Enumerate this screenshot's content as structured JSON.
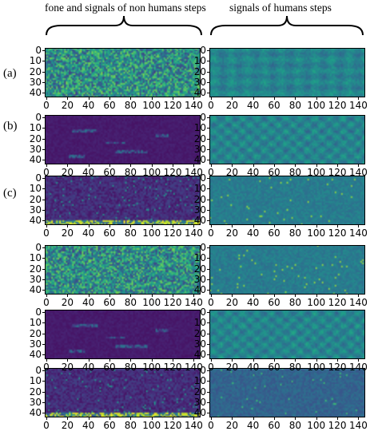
{
  "headers": {
    "left": "fone and signals of non humans steps",
    "right": "signals of humans steps"
  },
  "row_labels": [
    "(a)",
    "(b)",
    "(c)"
  ],
  "colors": {
    "viridis_low": "#440154",
    "viridis_mid": "#21918c",
    "viridis_high": "#fde725"
  },
  "chart_data": [
    {
      "type": "heatmap",
      "panel": "row1-left",
      "style": "noise",
      "mean": 0.5,
      "spread": 0.3,
      "xlim": [
        0,
        145
      ],
      "ylim": [
        42,
        0
      ],
      "xticks": [
        0,
        20,
        40,
        60,
        80,
        100,
        120,
        140
      ],
      "yticks": [
        0,
        10,
        20,
        30,
        40
      ]
    },
    {
      "type": "heatmap",
      "panel": "row1-right",
      "style": "smooth",
      "mean": 0.45,
      "spread": 0.12,
      "xlim": [
        0,
        145
      ],
      "ylim": [
        42,
        0
      ],
      "xticks": [
        0,
        20,
        40,
        60,
        80,
        100,
        120,
        140
      ],
      "yticks": [
        0,
        10,
        20,
        30,
        40
      ]
    },
    {
      "type": "heatmap",
      "panel": "row2-left",
      "style": "dark-streaks",
      "mean": 0.05,
      "spread": 0.05,
      "xlim": [
        0,
        145
      ],
      "ylim": [
        42,
        0
      ],
      "xticks": [
        0,
        20,
        40,
        60,
        80,
        100,
        120,
        140
      ],
      "yticks": [
        0,
        10,
        20,
        30,
        40
      ]
    },
    {
      "type": "heatmap",
      "panel": "row2-right",
      "style": "blobs",
      "mean": 0.45,
      "spread": 0.12,
      "xlim": [
        0,
        145
      ],
      "ylim": [
        42,
        0
      ],
      "xticks": [
        0,
        20,
        40,
        60,
        80,
        100,
        120,
        140
      ],
      "yticks": [
        0,
        10,
        20,
        30,
        40
      ]
    },
    {
      "type": "heatmap",
      "panel": "row3-left",
      "style": "dark-noise-bottom-band",
      "mean": 0.1,
      "spread": 0.08,
      "xlim": [
        0,
        145
      ],
      "ylim": [
        42,
        0
      ],
      "xticks": [
        0,
        20,
        40,
        60,
        80,
        100,
        120,
        140
      ],
      "yticks": [
        0,
        10,
        20,
        30,
        40
      ]
    },
    {
      "type": "heatmap",
      "panel": "row3-right",
      "style": "fine",
      "mean": 0.42,
      "spread": 0.08,
      "xlim": [
        0,
        145
      ],
      "ylim": [
        42,
        0
      ],
      "xticks": [
        0,
        20,
        40,
        60,
        80,
        100,
        120,
        140
      ],
      "yticks": [
        0,
        10,
        20,
        30,
        40
      ]
    },
    {
      "type": "heatmap",
      "panel": "row4-left",
      "style": "noise",
      "mean": 0.5,
      "spread": 0.3,
      "xlim": [
        0,
        145
      ],
      "ylim": [
        42,
        0
      ],
      "xticks": [
        0,
        20,
        40,
        60,
        80,
        100,
        120,
        140
      ],
      "yticks": [
        0,
        10,
        20,
        30,
        40
      ]
    },
    {
      "type": "heatmap",
      "panel": "row4-right",
      "style": "fine",
      "mean": 0.42,
      "spread": 0.08,
      "xlim": [
        0,
        145
      ],
      "ylim": [
        42,
        0
      ],
      "xticks": [
        0,
        20,
        40,
        60,
        80,
        100,
        120,
        140
      ],
      "yticks": [
        0,
        10,
        20,
        30,
        40
      ]
    },
    {
      "type": "heatmap",
      "panel": "row5-left",
      "style": "dark-streaks",
      "mean": 0.05,
      "spread": 0.05,
      "xlim": [
        0,
        145
      ],
      "ylim": [
        42,
        0
      ],
      "xticks": [
        0,
        20,
        40,
        60,
        80,
        100,
        120,
        140
      ],
      "yticks": [
        0,
        10,
        20,
        30,
        40
      ]
    },
    {
      "type": "heatmap",
      "panel": "row5-right",
      "style": "blobs",
      "mean": 0.45,
      "spread": 0.12,
      "xlim": [
        0,
        145
      ],
      "ylim": [
        42,
        0
      ],
      "xticks": [
        0,
        20,
        40,
        60,
        80,
        100,
        120,
        140
      ],
      "yticks": [
        0,
        10,
        20,
        30,
        40
      ]
    },
    {
      "type": "heatmap",
      "panel": "row6-left",
      "style": "dark-noise-bottom-band",
      "mean": 0.1,
      "spread": 0.08,
      "xlim": [
        0,
        145
      ],
      "ylim": [
        42,
        0
      ],
      "xticks": [
        0,
        20,
        40,
        60,
        80,
        100,
        120,
        140
      ],
      "yticks": [
        0,
        10,
        20,
        30,
        40
      ]
    },
    {
      "type": "heatmap",
      "panel": "row6-right",
      "style": "fine-dark",
      "mean": 0.32,
      "spread": 0.08,
      "xlim": [
        0,
        145
      ],
      "ylim": [
        42,
        0
      ],
      "xticks": [
        0,
        20,
        40,
        60,
        80,
        100,
        120,
        140
      ],
      "yticks": [
        0,
        10,
        20,
        30,
        40
      ]
    }
  ]
}
